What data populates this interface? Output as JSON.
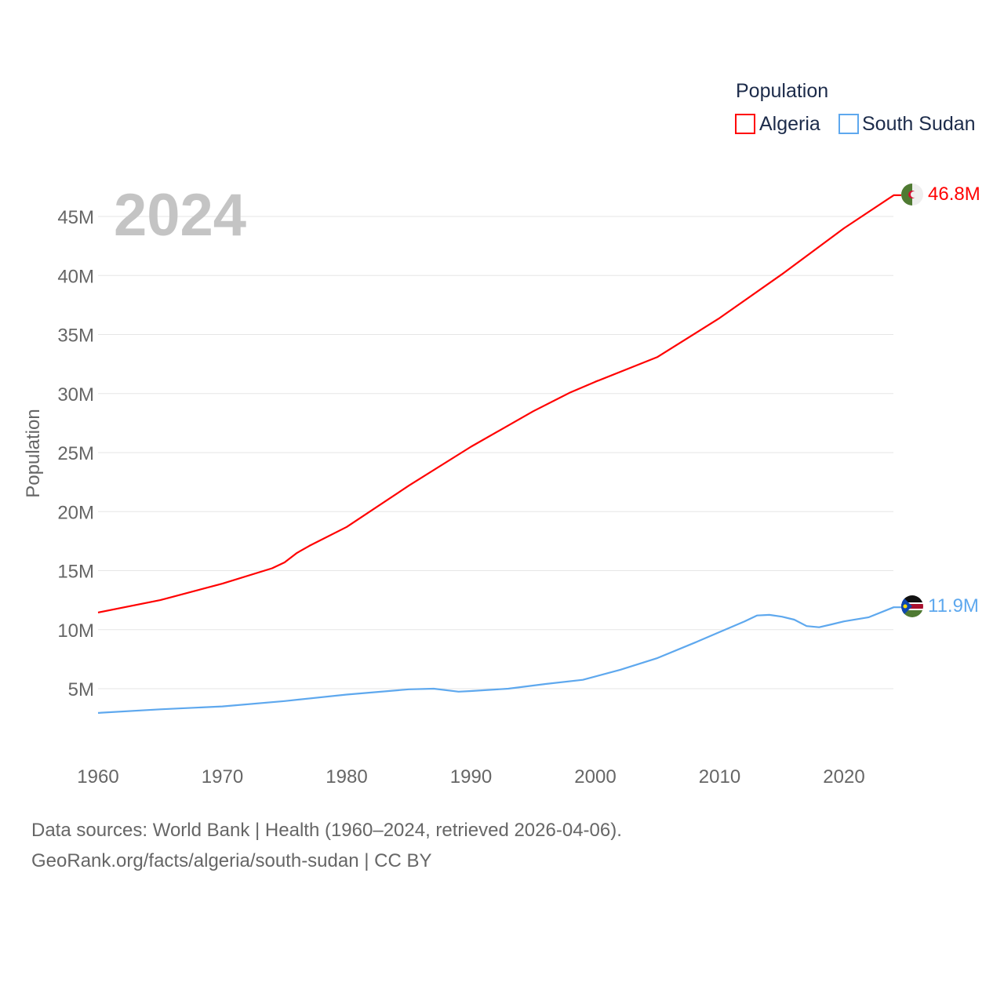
{
  "chart_data": {
    "type": "line",
    "title": "",
    "year_label": "2024",
    "xlabel": "",
    "ylabel": "Population",
    "xlim": [
      1960,
      2024
    ],
    "ylim": [
      0,
      47
    ],
    "x_ticks": [
      1960,
      1970,
      1980,
      1990,
      2000,
      2010,
      2020
    ],
    "y_ticks": [
      5,
      10,
      15,
      20,
      25,
      30,
      35,
      40,
      45
    ],
    "y_tick_labels": [
      "5M",
      "10M",
      "15M",
      "20M",
      "25M",
      "30M",
      "35M",
      "40M",
      "45M"
    ],
    "grid": true,
    "legend": {
      "title": "Population",
      "placement": "top-right"
    },
    "series": [
      {
        "name": "Algeria",
        "color": "#ff0000",
        "end_label": "46.8M",
        "flag": "algeria-flag",
        "x": [
          1960,
          1965,
          1970,
          1974,
          1975,
          1976,
          1977,
          1980,
          1985,
          1990,
          1995,
          1998,
          2000,
          2005,
          2010,
          2015,
          2020,
          2024
        ],
        "y": [
          11.45,
          12.5,
          13.9,
          15.2,
          15.7,
          16.5,
          17.1,
          18.7,
          22.2,
          25.5,
          28.5,
          30.1,
          31.0,
          33.1,
          36.4,
          40.1,
          44.0,
          46.8
        ]
      },
      {
        "name": "South Sudan",
        "color": "#5ea8ee",
        "end_label": "11.9M",
        "flag": "south-sudan-flag",
        "x": [
          1960,
          1965,
          1970,
          1975,
          1980,
          1985,
          1987,
          1989,
          1990,
          1993,
          1996,
          1999,
          2002,
          2005,
          2008,
          2010,
          2012,
          2013,
          2014,
          2015,
          2016,
          2017,
          2018,
          2019,
          2020,
          2022,
          2024
        ],
        "y": [
          2.95,
          3.25,
          3.5,
          3.95,
          4.5,
          4.95,
          5.0,
          4.75,
          4.8,
          5.0,
          5.4,
          5.75,
          6.6,
          7.6,
          8.9,
          9.8,
          10.7,
          11.2,
          11.25,
          11.1,
          10.85,
          10.3,
          10.2,
          10.45,
          10.7,
          11.05,
          11.9
        ]
      }
    ]
  },
  "footer": {
    "line1": "Data sources: World Bank | Health (1960–2024, retrieved 2026-04-06).",
    "line2": "GeoRank.org/facts/algeria/south-sudan | CC BY"
  }
}
